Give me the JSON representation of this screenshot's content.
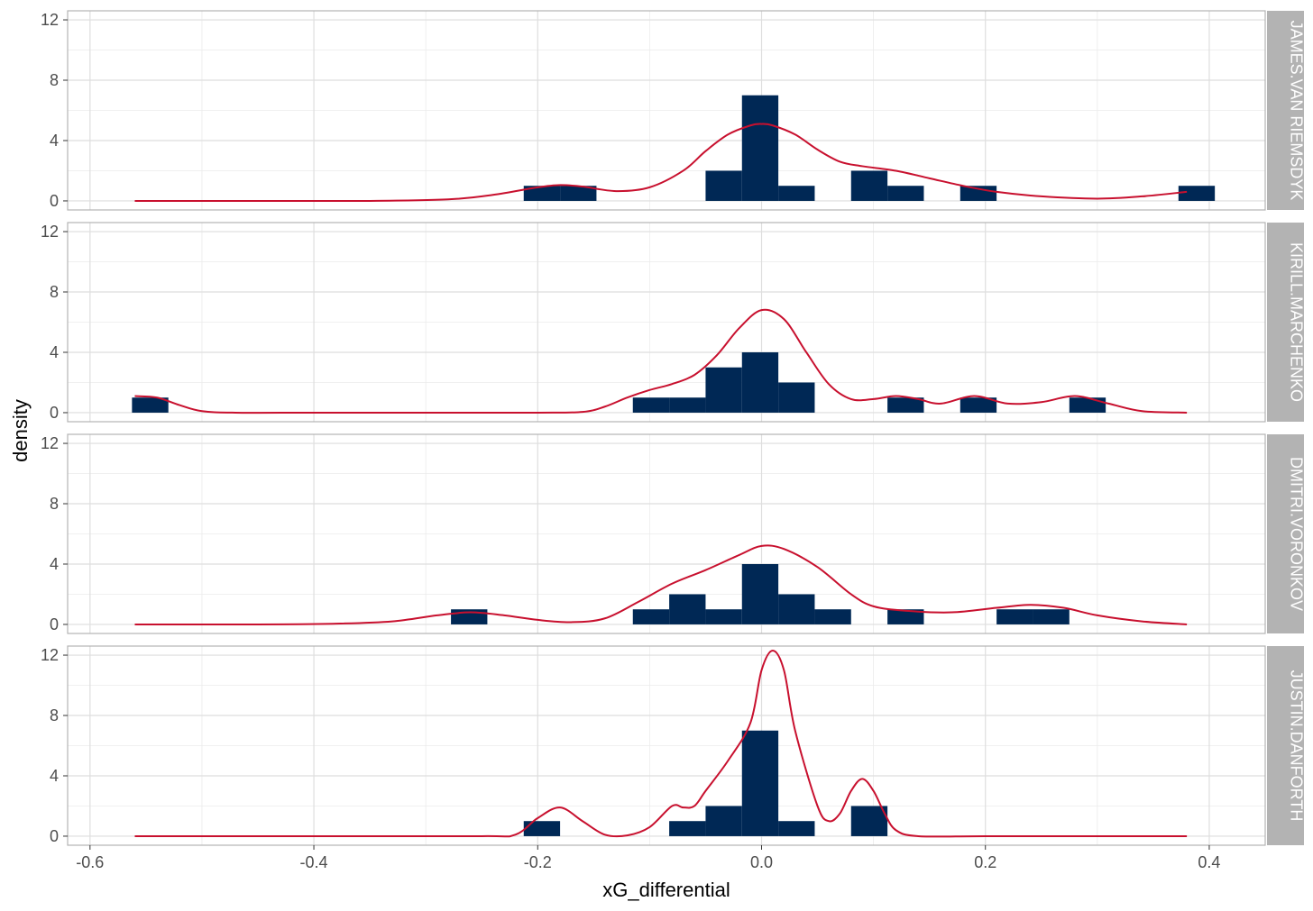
{
  "chart_data": {
    "type": "histogram-density-facets",
    "xlabel": "xG_differential",
    "ylabel": "density",
    "xlim": [
      -0.62,
      0.45
    ],
    "ylim": [
      -0.6,
      12.6
    ],
    "x_ticks": [
      -0.6,
      -0.4,
      -0.2,
      0.0,
      0.2,
      0.4
    ],
    "x_tick_labels": [
      "-0.6",
      "-0.4",
      "-0.2",
      "0.0",
      "0.2",
      "0.4"
    ],
    "y_ticks": [
      0,
      4,
      8,
      12
    ],
    "y_tick_labels": [
      "0",
      "4",
      "8",
      "12"
    ],
    "grid": true,
    "bar_color": "#002855",
    "line_color": "#C8102E",
    "strip_color": "#B3B3B3",
    "bin_width": 0.0325,
    "panels": [
      {
        "strip_label": "JAMES.VAN RIEMSDYK",
        "bars": [
          {
            "x0": -0.2125,
            "x1": -0.18,
            "y": 1
          },
          {
            "x0": -0.18,
            "x1": -0.1475,
            "y": 1
          },
          {
            "x0": -0.05,
            "x1": -0.0175,
            "y": 2
          },
          {
            "x0": -0.0175,
            "x1": 0.015,
            "y": 7
          },
          {
            "x0": 0.015,
            "x1": 0.0475,
            "y": 1
          },
          {
            "x0": 0.08,
            "x1": 0.1125,
            "y": 2
          },
          {
            "x0": 0.1125,
            "x1": 0.145,
            "y": 1
          },
          {
            "x0": 0.1775,
            "x1": 0.21,
            "y": 1
          },
          {
            "x0": 0.3725,
            "x1": 0.405,
            "y": 1
          }
        ],
        "density": {
          "x": [
            -0.56,
            -0.45,
            -0.35,
            -0.28,
            -0.24,
            -0.2,
            -0.18,
            -0.16,
            -0.13,
            -0.1,
            -0.07,
            -0.05,
            -0.03,
            -0.01,
            0.0,
            0.01,
            0.03,
            0.05,
            0.07,
            0.09,
            0.12,
            0.15,
            0.18,
            0.21,
            0.25,
            0.3,
            0.34,
            0.38
          ],
          "y": [
            0,
            0,
            0,
            0.1,
            0.4,
            0.9,
            1.05,
            0.95,
            0.65,
            0.9,
            2.0,
            3.3,
            4.4,
            5.0,
            5.1,
            5.0,
            4.4,
            3.4,
            2.6,
            2.3,
            2.0,
            1.5,
            1.0,
            0.6,
            0.3,
            0.15,
            0.3,
            0.6
          ]
        }
      },
      {
        "strip_label": "KIRILL.MARCHENKO",
        "bars": [
          {
            "x0": -0.5625,
            "x1": -0.53,
            "y": 1
          },
          {
            "x0": -0.115,
            "x1": -0.0825,
            "y": 1
          },
          {
            "x0": -0.0825,
            "x1": -0.05,
            "y": 1
          },
          {
            "x0": -0.05,
            "x1": -0.0175,
            "y": 3
          },
          {
            "x0": -0.0175,
            "x1": 0.015,
            "y": 4
          },
          {
            "x0": 0.015,
            "x1": 0.0475,
            "y": 2
          },
          {
            "x0": 0.1125,
            "x1": 0.145,
            "y": 1
          },
          {
            "x0": 0.1775,
            "x1": 0.21,
            "y": 1
          },
          {
            "x0": 0.275,
            "x1": 0.3075,
            "y": 1
          }
        ],
        "density": {
          "x": [
            -0.56,
            -0.54,
            -0.52,
            -0.5,
            -0.47,
            -0.4,
            -0.3,
            -0.2,
            -0.16,
            -0.14,
            -0.12,
            -0.1,
            -0.08,
            -0.06,
            -0.04,
            -0.02,
            0.0,
            0.02,
            0.04,
            0.06,
            0.08,
            0.1,
            0.12,
            0.14,
            0.16,
            0.19,
            0.22,
            0.25,
            0.28,
            0.31,
            0.34,
            0.38
          ],
          "y": [
            1.1,
            1.0,
            0.5,
            0.1,
            0,
            0,
            0,
            0,
            0.05,
            0.4,
            1.0,
            1.5,
            1.9,
            2.5,
            3.8,
            5.6,
            6.8,
            6.2,
            4.0,
            1.9,
            0.9,
            0.9,
            1.1,
            0.9,
            0.6,
            1.1,
            0.6,
            0.7,
            1.1,
            0.6,
            0.1,
            0
          ]
        }
      },
      {
        "strip_label": "DMITRI.VORONKOV",
        "bars": [
          {
            "x0": -0.2775,
            "x1": -0.245,
            "y": 1
          },
          {
            "x0": -0.115,
            "x1": -0.0825,
            "y": 1
          },
          {
            "x0": -0.0825,
            "x1": -0.05,
            "y": 2
          },
          {
            "x0": -0.05,
            "x1": -0.0175,
            "y": 1
          },
          {
            "x0": -0.0175,
            "x1": 0.015,
            "y": 4
          },
          {
            "x0": 0.015,
            "x1": 0.0475,
            "y": 2
          },
          {
            "x0": 0.0475,
            "x1": 0.08,
            "y": 1
          },
          {
            "x0": 0.1125,
            "x1": 0.145,
            "y": 1
          },
          {
            "x0": 0.21,
            "x1": 0.2425,
            "y": 1
          },
          {
            "x0": 0.2425,
            "x1": 0.275,
            "y": 1
          }
        ],
        "density": {
          "x": [
            -0.56,
            -0.45,
            -0.38,
            -0.33,
            -0.29,
            -0.26,
            -0.23,
            -0.2,
            -0.17,
            -0.14,
            -0.11,
            -0.08,
            -0.05,
            -0.02,
            0.0,
            0.02,
            0.05,
            0.08,
            0.1,
            0.13,
            0.17,
            0.21,
            0.24,
            0.27,
            0.3,
            0.34,
            0.38
          ],
          "y": [
            0,
            0,
            0.05,
            0.2,
            0.6,
            0.8,
            0.6,
            0.3,
            0.15,
            0.4,
            1.5,
            2.7,
            3.6,
            4.6,
            5.2,
            5.0,
            3.8,
            2.0,
            1.2,
            0.9,
            0.8,
            1.1,
            1.3,
            1.1,
            0.6,
            0.2,
            0
          ]
        }
      },
      {
        "strip_label": "JUSTIN.DANFORTH",
        "bars": [
          {
            "x0": -0.2125,
            "x1": -0.18,
            "y": 1
          },
          {
            "x0": -0.0825,
            "x1": -0.05,
            "y": 1
          },
          {
            "x0": -0.05,
            "x1": -0.0175,
            "y": 2
          },
          {
            "x0": -0.0175,
            "x1": 0.015,
            "y": 7
          },
          {
            "x0": 0.015,
            "x1": 0.0475,
            "y": 1
          },
          {
            "x0": 0.08,
            "x1": 0.1125,
            "y": 2
          }
        ],
        "density": {
          "x": [
            -0.56,
            -0.4,
            -0.25,
            -0.22,
            -0.2,
            -0.18,
            -0.16,
            -0.14,
            -0.12,
            -0.1,
            -0.08,
            -0.07,
            -0.06,
            -0.05,
            -0.03,
            -0.01,
            0.0,
            0.01,
            0.02,
            0.03,
            0.05,
            0.06,
            0.07,
            0.08,
            0.09,
            0.1,
            0.11,
            0.12,
            0.14,
            0.2,
            0.3,
            0.38
          ],
          "y": [
            0,
            0,
            0,
            0.1,
            1.2,
            1.9,
            1.0,
            0.1,
            0.05,
            0.6,
            2.0,
            1.9,
            2.0,
            3.0,
            5.0,
            7.5,
            11.0,
            12.3,
            11.0,
            7.0,
            2.0,
            1.0,
            1.5,
            3.0,
            3.8,
            3.0,
            1.5,
            0.4,
            0,
            0,
            0,
            0
          ]
        }
      }
    ]
  }
}
